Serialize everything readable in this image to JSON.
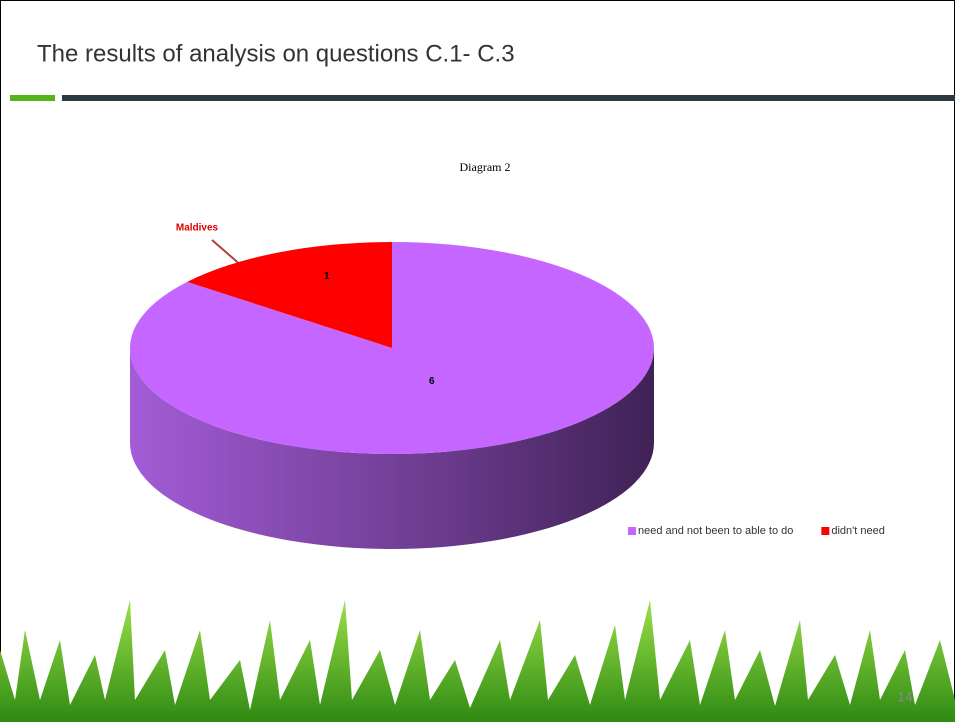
{
  "slide": {
    "title": "The results of analysis on questions C.1- C.3",
    "page_number": "14"
  },
  "chart_data": {
    "type": "pie",
    "title": "Diagram 2",
    "annotation": "Maldives",
    "categories": [
      "need and not been to able to do",
      "didn't need"
    ],
    "values": [
      6,
      1
    ],
    "colors": [
      "#c466ff",
      "#ff0000"
    ],
    "legend": "bottom-right"
  }
}
